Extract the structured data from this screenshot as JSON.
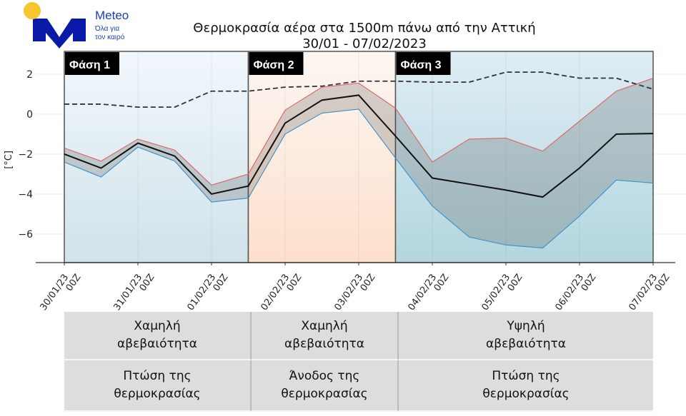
{
  "logo": {
    "brand": "Meteo",
    "slogan_line1": "Όλα για",
    "slogan_line2": "τον καιρό",
    "sun_color": "#f7c62f",
    "m_color": "#0a1aa8"
  },
  "title_line1": "Θερμοκρασία αέρα στα 1500m πάνω από την Αττική",
  "title_line2": "30/01 - 07/02/2023",
  "chart_data": {
    "type": "line",
    "title": "Θερμοκρασία αέρα στα 1500m πάνω από την Αττική 30/01 - 07/02/2023",
    "ylabel": "[°C]",
    "ylim": [
      -7.43,
      3.14
    ],
    "yticks": [
      2,
      0,
      -2,
      -4,
      -6
    ],
    "grid": true,
    "x": [
      "30/01/23 00Z",
      "30/01/23 12Z",
      "31/01/23 00Z",
      "31/01/23 12Z",
      "01/02/23 00Z",
      "01/02/23 12Z",
      "02/02/23 00Z",
      "02/02/23 12Z",
      "03/02/23 00Z",
      "03/02/23 12Z",
      "04/02/23 00Z",
      "04/02/23 12Z",
      "05/02/23 00Z",
      "05/02/23 12Z",
      "06/02/23 00Z",
      "06/02/23 12Z",
      "07/02/23 00Z"
    ],
    "xtick_labels": [
      [
        "30/01/23",
        "00Z"
      ],
      [
        "31/01/23",
        "00Z"
      ],
      [
        "01/02/23",
        "00Z"
      ],
      [
        "02/02/23",
        "00Z"
      ],
      [
        "03/02/23",
        "00Z"
      ],
      [
        "04/02/23",
        "00Z"
      ],
      [
        "05/02/23",
        "00Z"
      ],
      [
        "06/02/23",
        "00Z"
      ],
      [
        "07/02/23",
        "00Z"
      ]
    ],
    "series": [
      {
        "role": "upper",
        "color": "#e06060",
        "values": [
          -1.7,
          -2.35,
          -1.25,
          -1.8,
          -3.55,
          -3.0,
          0.2,
          1.35,
          1.55,
          0.3,
          -2.4,
          -1.25,
          -1.2,
          -1.85,
          -0.35,
          1.15,
          1.8
        ]
      },
      {
        "role": "mean",
        "color": "#111111",
        "values": [
          -2.0,
          -2.7,
          -1.45,
          -2.1,
          -4.0,
          -3.6,
          -0.45,
          0.7,
          0.95,
          -1.1,
          -3.2,
          -3.5,
          -3.8,
          -4.15,
          -2.7,
          -1.0,
          -0.97
        ]
      },
      {
        "role": "lower",
        "color": "#3a8ec8",
        "values": [
          -2.4,
          -3.15,
          -1.65,
          -2.35,
          -4.4,
          -4.2,
          -1.0,
          0.05,
          0.25,
          -2.2,
          -4.6,
          -6.15,
          -6.55,
          -6.7,
          -5.1,
          -3.3,
          -3.45
        ]
      },
      {
        "role": "dashed",
        "color": "#333333",
        "values": [
          0.5,
          0.5,
          0.35,
          0.35,
          1.15,
          1.15,
          1.35,
          1.4,
          1.65,
          1.65,
          1.6,
          1.6,
          2.1,
          2.1,
          1.8,
          1.8,
          1.25
        ]
      }
    ],
    "phases": [
      {
        "label": "Φάση 1",
        "start": "30/01/23 00Z",
        "end": "01/02/23 12Z",
        "top": "#f2f7fc",
        "bottom": "#cfe3ea"
      },
      {
        "label": "Φάση 2",
        "start": "01/02/23 12Z",
        "end": "03/02/23 12Z",
        "top": "#fcf6f2",
        "bottom": "#fde0cc"
      },
      {
        "label": "Φάση 3",
        "start": "03/02/23 12Z",
        "end": "07/02/23 00Z",
        "top": "#dfedf5",
        "bottom": "#b3d6de"
      }
    ]
  },
  "table": [
    [
      "Χαμηλή\nαβεβαιότητα",
      "Χαμηλή\nαβεβαιότητα",
      "Υψηλή\nαβεβαιότητα"
    ],
    [
      "Πτώση της\nθερμοκρασίας",
      "Άνοδος της\nθερμοκρασίας",
      "Πτώση της\nθερμοκρασίας"
    ]
  ]
}
